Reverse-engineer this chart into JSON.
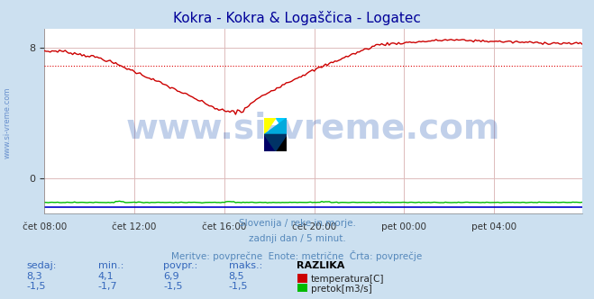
{
  "title": "Kokra - Kokra & Logaščica - Logatec",
  "title_color": "#000099",
  "bg_color": "#cce0f0",
  "plot_bg_color": "#ffffff",
  "grid_color": "#ddbbbb",
  "xlabel_ticks": [
    "čet 08:00",
    "čet 12:00",
    "čet 16:00",
    "čet 20:00",
    "pet 00:00",
    "pet 04:00"
  ],
  "tick_positions": [
    0,
    48,
    96,
    144,
    192,
    240
  ],
  "total_points": 288,
  "ylim": [
    -2.2,
    9.2
  ],
  "yticks": [
    0,
    8
  ],
  "avg_line_y": 6.9,
  "avg_line_color": "#dd0000",
  "temp_color": "#cc0000",
  "flow_color": "#00bb00",
  "flow_near_bottom_color": "#0000cc",
  "watermark_text": "www.si-vreme.com",
  "watermark_color": "#3366bb",
  "watermark_alpha": 0.3,
  "watermark_fontsize": 28,
  "subtitle_lines": [
    "Slovenija / reke in morje.",
    "zadnji dan / 5 minut.",
    "Meritve: povprečne  Enote: metrične  Črta: povprečje"
  ],
  "subtitle_color": "#5588bb",
  "table_headers": [
    "sedaj:",
    "min.:",
    "povpr.:",
    "maks.:",
    "RAZLIKA"
  ],
  "table_row1_vals": [
    "8,3",
    "4,1",
    "6,9",
    "8,5"
  ],
  "table_row2_vals": [
    "-1,5",
    "-1,7",
    "-1,5",
    "-1,5"
  ],
  "legend_labels": [
    "temperatura[C]",
    "pretok[m3/s]"
  ],
  "legend_colors": [
    "#cc0000",
    "#00bb00"
  ],
  "table_color": "#3366bb",
  "razlika_color": "#000000",
  "side_label": "www.si-vreme.com",
  "side_label_color": "#3366bb"
}
